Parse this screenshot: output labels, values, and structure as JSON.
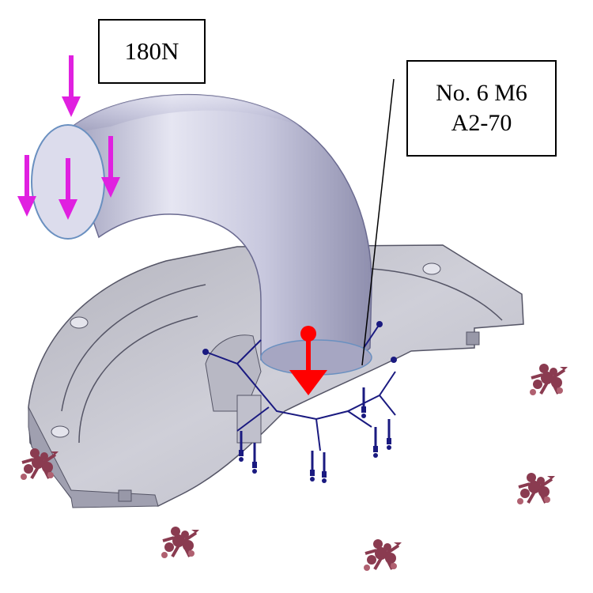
{
  "labels": {
    "force": "180N",
    "bolt_line1": "No. 6 M6",
    "bolt_line2": "A2-70"
  },
  "colors": {
    "force_arrow": "#e020e0",
    "pressure_arrow": "#ff0000",
    "bolt_symbol": "#1a1a80",
    "fixture_symbol": "#8a3b50",
    "part_fill": "#c9c9d2",
    "pipe_fill": "#c4c4dc"
  },
  "icons": {
    "force_arrows": "downward-force-arrow-icon",
    "bolt_connectors": "bolt-connector-icon",
    "fixtures": "fixed-support-icon"
  }
}
